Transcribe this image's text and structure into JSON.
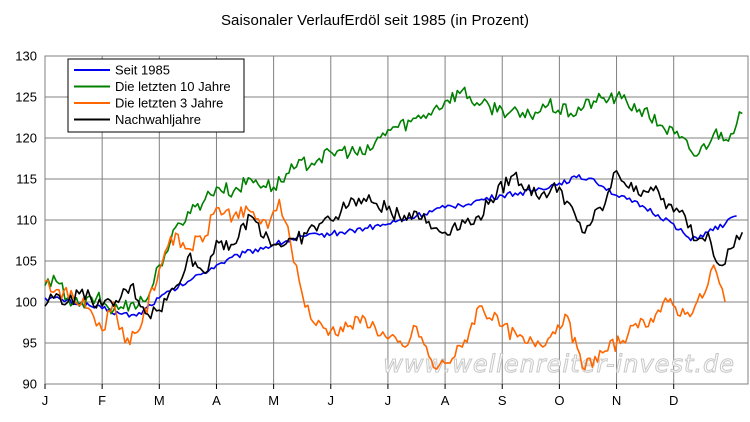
{
  "chart_data": {
    "type": "line",
    "title": "Saisonaler VerlaufErdöl seit 1985 (in Prozent)",
    "xlabel": "",
    "ylabel": "",
    "ylim": [
      90,
      130
    ],
    "y_ticks": [
      90,
      95,
      100,
      105,
      110,
      115,
      120,
      125,
      130
    ],
    "x_month_labels": [
      "J",
      "F",
      "M",
      "A",
      "M",
      "J",
      "J",
      "A",
      "S",
      "O",
      "N",
      "D"
    ],
    "xlim": [
      0,
      12.3
    ],
    "grid": true,
    "legend_position": "top-left",
    "watermark": "www.wellenreiter-invest.de",
    "series": [
      {
        "name": "Seit 1985",
        "color": "#0000ee",
        "x": [
          0,
          0.3,
          0.6,
          1.0,
          1.3,
          1.6,
          2.0,
          2.5,
          3.0,
          3.5,
          4.0,
          4.4,
          4.8,
          5.2,
          5.6,
          6.0,
          6.5,
          7.0,
          7.5,
          8.0,
          8.5,
          9.0,
          9.3,
          9.6,
          10.0,
          10.5,
          11.0,
          11.3,
          11.6,
          11.9,
          12.1
        ],
        "values": [
          100.5,
          100.3,
          99.8,
          99.2,
          98.6,
          98.3,
          100.5,
          102.5,
          104.5,
          106.0,
          107.0,
          107.8,
          108.2,
          108.5,
          109.0,
          109.5,
          110.5,
          111.5,
          112.2,
          113.0,
          113.5,
          114.5,
          115.2,
          115.0,
          113.0,
          111.5,
          109.5,
          107.5,
          108.5,
          109.5,
          110.5
        ]
      },
      {
        "name": "Die letzten 10 Jahre",
        "color": "#008000",
        "x": [
          0,
          0.2,
          0.4,
          0.6,
          0.9,
          1.2,
          1.5,
          1.8,
          2.0,
          2.2,
          2.5,
          2.8,
          3.0,
          3.3,
          3.6,
          4.0,
          4.4,
          4.8,
          5.2,
          5.6,
          6.0,
          6.4,
          6.8,
          7.0,
          7.3,
          7.6,
          8.0,
          8.4,
          8.8,
          9.2,
          9.6,
          10.0,
          10.4,
          10.8,
          11.1,
          11.4,
          11.7,
          12.0,
          12.2
        ],
        "values": [
          102,
          102.5,
          100.5,
          99.5,
          100.5,
          99.0,
          99.8,
          100.5,
          104.5,
          107.5,
          111.0,
          112.5,
          114.0,
          113.5,
          115.0,
          114.0,
          116.5,
          117.5,
          118.5,
          118.0,
          121.0,
          122.0,
          123.5,
          124.5,
          125.8,
          124.0,
          123.5,
          122.5,
          124.0,
          123.0,
          124.5,
          125.0,
          123.5,
          121.5,
          120.0,
          117.8,
          120.5,
          120.5,
          123.0
        ]
      },
      {
        "name": "Die letzten 3 Jahre",
        "color": "#ff6600",
        "x": [
          0,
          0.2,
          0.5,
          0.8,
          1.0,
          1.2,
          1.4,
          1.7,
          2.0,
          2.2,
          2.5,
          2.8,
          3.0,
          3.3,
          3.6,
          3.9,
          4.1,
          4.3,
          4.5,
          4.7,
          5.0,
          5.3,
          5.6,
          6.0,
          6.3,
          6.5,
          6.8,
          7.0,
          7.3,
          7.6,
          8.0,
          8.4,
          8.8,
          9.1,
          9.4,
          9.8,
          10.2,
          10.6,
          10.9,
          11.2,
          11.5,
          11.7,
          11.9
        ],
        "values": [
          102.5,
          101.5,
          100.5,
          99.0,
          96.5,
          100.0,
          95.0,
          97.5,
          104.0,
          108.0,
          106.5,
          108.0,
          111.5,
          110.5,
          111.0,
          109.0,
          112.5,
          107.0,
          101.0,
          97.5,
          96.5,
          97.0,
          98.0,
          95.5,
          94.5,
          97.0,
          92.0,
          92.5,
          94.5,
          99.5,
          97.0,
          95.0,
          95.5,
          98.5,
          92.0,
          94.0,
          96.0,
          98.0,
          100.0,
          98.5,
          100.5,
          104.5,
          100.0
        ]
      },
      {
        "name": "Nachwahljahre",
        "color": "#000000",
        "x": [
          0,
          0.2,
          0.4,
          0.6,
          0.8,
          1.0,
          1.2,
          1.5,
          1.8,
          2.0,
          2.3,
          2.5,
          2.8,
          3.0,
          3.3,
          3.6,
          4.0,
          4.4,
          4.8,
          5.0,
          5.4,
          5.8,
          6.2,
          6.5,
          6.8,
          7.0,
          7.3,
          7.5,
          7.8,
          8.2,
          8.6,
          9.0,
          9.4,
          9.8,
          10.0,
          10.3,
          10.6,
          11.0,
          11.2,
          11.4,
          11.6,
          11.8,
          12.0,
          12.2
        ],
        "values": [
          99.5,
          101.0,
          100.0,
          101.0,
          100.5,
          99.5,
          99.5,
          102.0,
          98.5,
          99.0,
          102.0,
          105.5,
          103.5,
          107.5,
          107.0,
          110.5,
          107.0,
          107.5,
          109.5,
          110.0,
          112.5,
          112.0,
          110.5,
          111.0,
          109.0,
          108.5,
          110.0,
          109.5,
          112.5,
          115.5,
          113.0,
          114.0,
          108.5,
          112.0,
          116.0,
          113.5,
          114.0,
          111.0,
          110.5,
          107.5,
          108.5,
          104.5,
          106.5,
          108.5
        ]
      }
    ]
  }
}
